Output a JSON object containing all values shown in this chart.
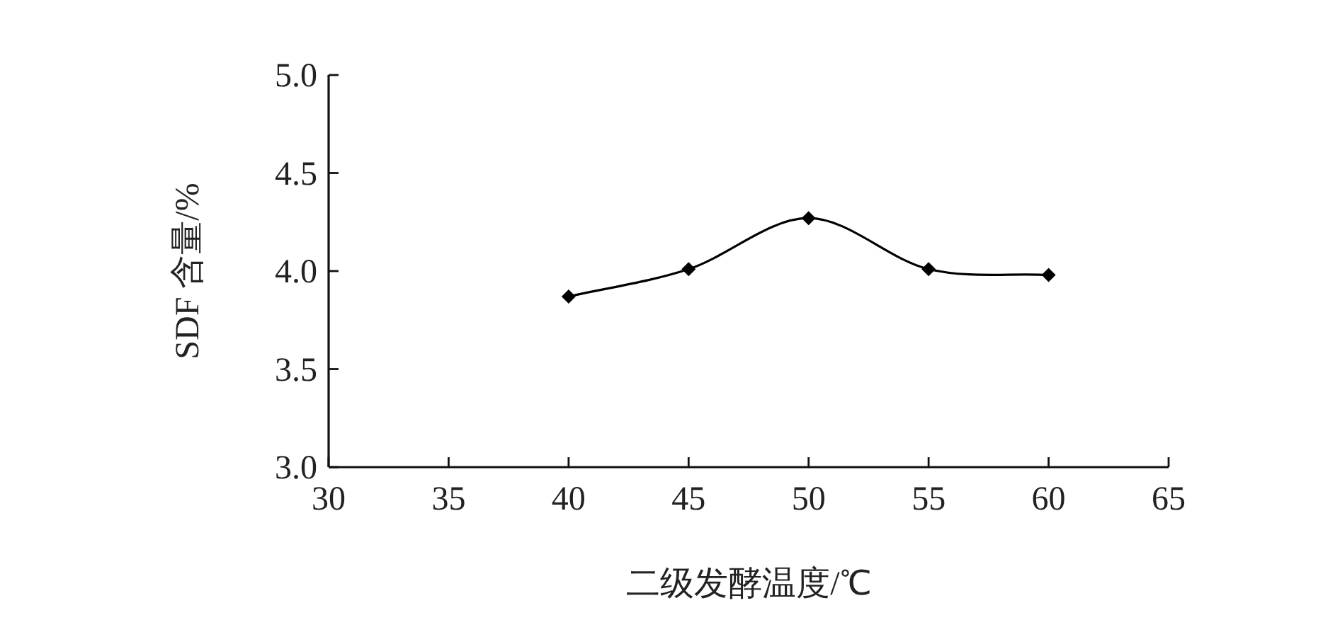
{
  "chart_data": {
    "type": "line",
    "xlabel": "二级发酵温度/℃",
    "ylabel": "SDF 含量/%",
    "x": [
      40,
      45,
      50,
      55,
      60
    ],
    "series": [
      {
        "color": "#000000",
        "values": [
          3.87,
          4.01,
          4.27,
          4.01,
          3.98
        ]
      }
    ],
    "xlim": [
      30,
      65
    ],
    "xticks": [
      30,
      35,
      40,
      45,
      50,
      55,
      60,
      65
    ],
    "ylim": [
      3,
      5
    ],
    "yticks": [
      {
        "value": 3,
        "label": "3.0"
      },
      {
        "value": 3.5,
        "label": "3.5"
      },
      {
        "value": 4,
        "label": "4.0"
      },
      {
        "value": 4.5,
        "label": "4.5"
      },
      {
        "value": 5,
        "label": "5.0"
      }
    ],
    "marker": "diamond",
    "line_style": "solid",
    "grid": false
  }
}
